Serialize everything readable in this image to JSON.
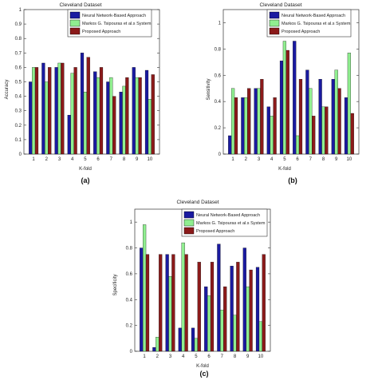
{
  "colors": {
    "neural": "#1a1aa0",
    "markos": "#90ee90",
    "proposed": "#8b1a1a"
  },
  "chart_data": [
    {
      "type": "bar",
      "caption": "(a)",
      "title": "Cleveland Dataset",
      "xlabel": "K-fold",
      "ylabel": "Accuracy",
      "ylim": [
        0,
        1
      ],
      "yticks": [
        "0",
        "0.1",
        "0.2",
        "0.3",
        "0.4",
        "0.5",
        "0.6",
        "0.7",
        "0.8",
        "0.9",
        "1"
      ],
      "legend_position": "top-right",
      "categories": [
        "1",
        "2",
        "3",
        "4",
        "5",
        "6",
        "7",
        "8",
        "9",
        "10"
      ],
      "series": [
        {
          "name": "Neural Network-Based Approach",
          "values": [
            0.5,
            0.63,
            0.6,
            0.27,
            0.7,
            0.57,
            0.5,
            0.43,
            0.6,
            0.58
          ]
        },
        {
          "name": "Markos G. Tsipouras et al.s System",
          "values": [
            0.6,
            0.5,
            0.63,
            0.56,
            0.43,
            0.53,
            0.53,
            0.47,
            0.53,
            0.38
          ]
        },
        {
          "name": "Proposed Approach",
          "values": [
            0.6,
            0.6,
            0.63,
            0.6,
            0.67,
            0.6,
            0.4,
            0.53,
            0.53,
            0.55
          ]
        }
      ]
    },
    {
      "type": "bar",
      "caption": "(b)",
      "title": "Cleveland Dataset",
      "xlabel": "K-fold",
      "ylabel": "Sensitivity",
      "ylim": [
        0,
        1.1
      ],
      "yticks": [
        "0",
        "0.2",
        "0.4",
        "0.6",
        "0.8",
        "1"
      ],
      "legend_position": "top-right",
      "categories": [
        "1",
        "2",
        "3",
        "4",
        "5",
        "6",
        "7",
        "8",
        "9",
        "10"
      ],
      "series": [
        {
          "name": "Neural Network-Based Approach",
          "values": [
            0.14,
            0.43,
            0.5,
            0.36,
            0.71,
            0.86,
            0.64,
            0.57,
            0.57,
            0.43
          ]
        },
        {
          "name": "Markos G. Tsipouras et al.s System",
          "values": [
            0.5,
            0.43,
            0.5,
            0.29,
            0.86,
            0.14,
            0.5,
            0.36,
            0.64,
            0.77
          ]
        },
        {
          "name": "Proposed Approach",
          "values": [
            0.43,
            0.5,
            0.57,
            0.43,
            0.79,
            0.57,
            0.29,
            0.36,
            0.5,
            0.31
          ]
        }
      ]
    },
    {
      "type": "bar",
      "caption": "(c)",
      "title": "Cleveland Dataset",
      "xlabel": "K-fold",
      "ylabel": "Specificity",
      "ylim": [
        0,
        1.1
      ],
      "yticks": [
        "0",
        "0.2",
        "0.4",
        "0.6",
        "0.8",
        "1"
      ],
      "legend_position": "top-right",
      "categories": [
        "1",
        "2",
        "3",
        "4",
        "5",
        "6",
        "7",
        "8",
        "9",
        "10"
      ],
      "series": [
        {
          "name": "Neural Network-Based Approach",
          "values": [
            0.8,
            0.03,
            0.75,
            0.18,
            0.18,
            0.5,
            0.83,
            0.66,
            0.8,
            0.65
          ]
        },
        {
          "name": "Markos G. Tsipouras et al.s System",
          "values": [
            0.98,
            0.11,
            0.58,
            0.84,
            0.1,
            0.43,
            0.32,
            0.28,
            0.5,
            0.23
          ]
        },
        {
          "name": "Proposed Approach",
          "values": [
            0.75,
            0.75,
            0.75,
            0.75,
            0.69,
            0.69,
            0.5,
            0.69,
            0.63,
            0.75
          ]
        }
      ]
    }
  ]
}
